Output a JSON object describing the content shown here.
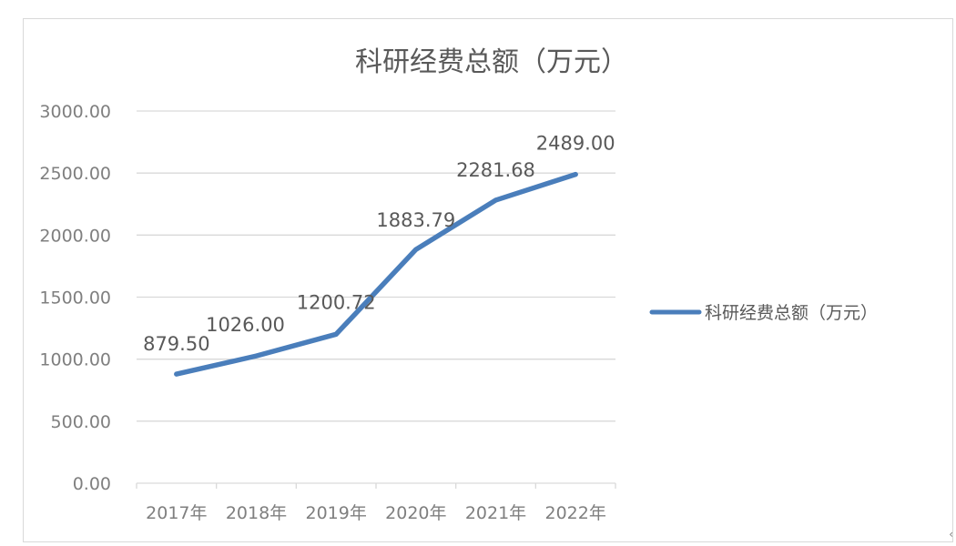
{
  "chart_data": {
    "type": "line",
    "title": "科研经费总额（万元）",
    "categories": [
      "2017年",
      "2018年",
      "2019年",
      "2020年",
      "2021年",
      "2022年"
    ],
    "series": [
      {
        "name": "科研经费总额（万元）",
        "values": [
          879.5,
          1026.0,
          1200.72,
          1883.79,
          2281.68,
          2489.0
        ],
        "labels": [
          "879.50",
          "1026.00",
          "1200.72",
          "1883.79",
          "2281.68",
          "2489.00"
        ],
        "color": "#4a7ebb"
      }
    ],
    "yticks": [
      "0.00",
      "500.00",
      "1000.00",
      "1500.00",
      "2000.00",
      "2500.00",
      "3000.00"
    ],
    "ylim": [
      0,
      3000
    ],
    "grid": true,
    "legend_position": "right"
  },
  "corner_glyph": "‹"
}
